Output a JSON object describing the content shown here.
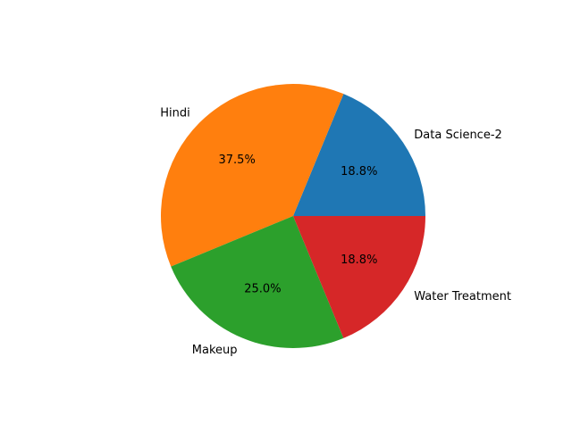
{
  "chart_data": {
    "type": "pie",
    "title": "",
    "categories": [
      "Data Science-2",
      "Hindi",
      "Makeup",
      "Water Treatment"
    ],
    "values": [
      18.8,
      37.5,
      25.0,
      18.8
    ],
    "percent_labels": [
      "18.8%",
      "37.5%",
      "25.0%",
      "18.8%"
    ],
    "colors": [
      "#1f77b4",
      "#ff7f0e",
      "#2ca02c",
      "#d62728"
    ],
    "start_angle_deg": 0,
    "direction": "counterclockwise",
    "legend": "none"
  }
}
